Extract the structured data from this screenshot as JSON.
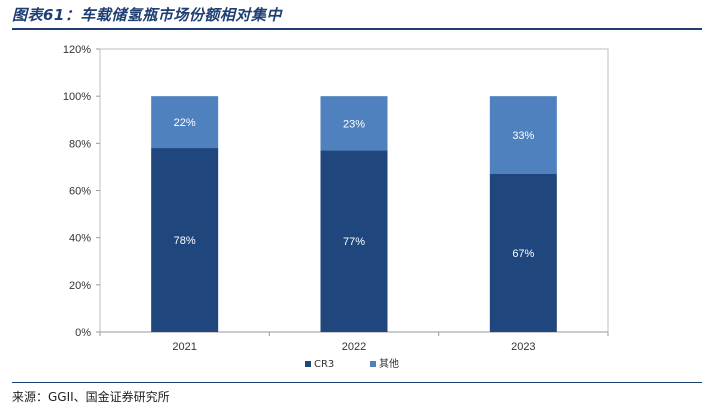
{
  "figure": {
    "title": "图表61：车载储氢瓶市场份额相对集中",
    "source": "来源：GGII、国金证券研究所"
  },
  "colors": {
    "title": "#1f3f73",
    "cr3": "#1f467d",
    "other": "#4e81bd",
    "axis": "#bfbfbf"
  },
  "chart_data": {
    "type": "bar",
    "stacked": true,
    "categories": [
      "2021",
      "2022",
      "2023"
    ],
    "series": [
      {
        "name": "CR3",
        "values": [
          78,
          77,
          67
        ],
        "labels": [
          "78%",
          "77%",
          "67%"
        ]
      },
      {
        "name": "其他",
        "values": [
          22,
          23,
          33
        ],
        "labels": [
          "22%",
          "23%",
          "33%"
        ]
      }
    ],
    "ylim": [
      0,
      120
    ],
    "yticks": [
      0,
      20,
      40,
      60,
      80,
      100,
      120
    ],
    "ytick_labels": [
      "0%",
      "20%",
      "40%",
      "60%",
      "80%",
      "100%",
      "120%"
    ],
    "grid": false,
    "legend_position": "bottom-center"
  }
}
